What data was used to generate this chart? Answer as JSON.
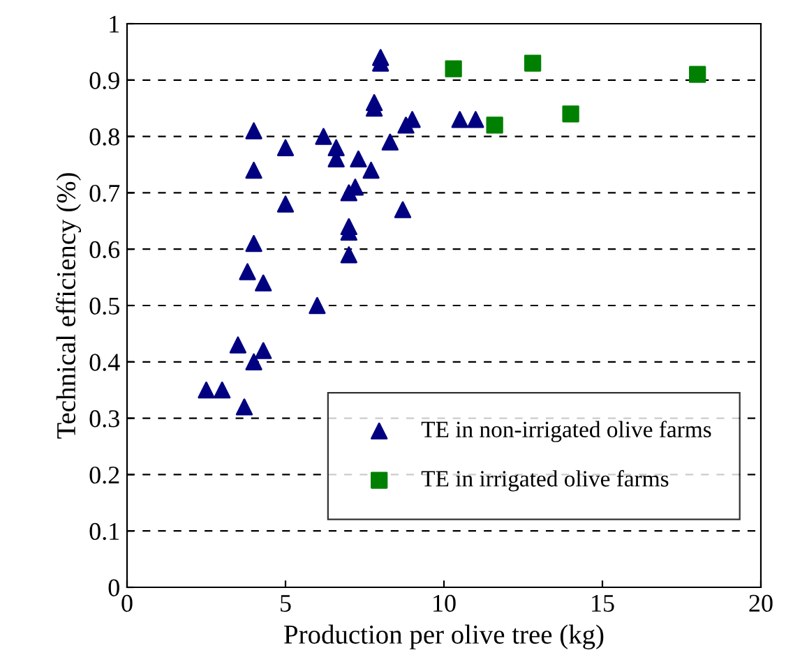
{
  "chart_data": {
    "type": "scatter",
    "xlabel": "Production per olive tree (kg)",
    "ylabel": "Technical efficiency (%)",
    "xlim": [
      0,
      20
    ],
    "xticks": [
      0,
      5,
      10,
      15,
      20
    ],
    "ylim": [
      0,
      1
    ],
    "yticks": [
      0,
      0.1,
      0.2,
      0.3,
      0.4,
      0.5,
      0.6,
      0.7,
      0.8,
      0.9,
      1
    ],
    "grid": "y",
    "legend": "bottom right",
    "series": [
      {
        "name": "TE in non-irrigated olive farms",
        "color": "#000080",
        "marker": "triangle",
        "x": [
          2.5,
          3.0,
          3.5,
          3.7,
          3.8,
          4.0,
          4.3,
          4.0,
          4.3,
          4.0,
          4.0,
          5.0,
          5.0,
          6.0,
          6.2,
          6.6,
          6.6,
          7.0,
          7.0,
          7.0,
          7.0,
          7.2,
          7.3,
          7.7,
          7.8,
          7.8,
          8.0,
          8.0,
          8.3,
          8.7,
          8.8,
          9.0,
          10.5,
          11.0
        ],
        "values": [
          0.35,
          0.35,
          0.43,
          0.32,
          0.56,
          0.4,
          0.42,
          0.61,
          0.54,
          0.74,
          0.81,
          0.78,
          0.68,
          0.5,
          0.8,
          0.78,
          0.76,
          0.59,
          0.63,
          0.64,
          0.7,
          0.71,
          0.76,
          0.74,
          0.85,
          0.86,
          0.93,
          0.94,
          0.79,
          0.67,
          0.82,
          0.83,
          0.83,
          0.83
        ]
      },
      {
        "name": "TE in irrigated olive farms",
        "color": "#008000",
        "marker": "square",
        "x": [
          10.3,
          12.8,
          11.6,
          14.0,
          18.0
        ],
        "values": [
          0.92,
          0.93,
          0.82,
          0.84,
          0.91
        ]
      }
    ]
  }
}
